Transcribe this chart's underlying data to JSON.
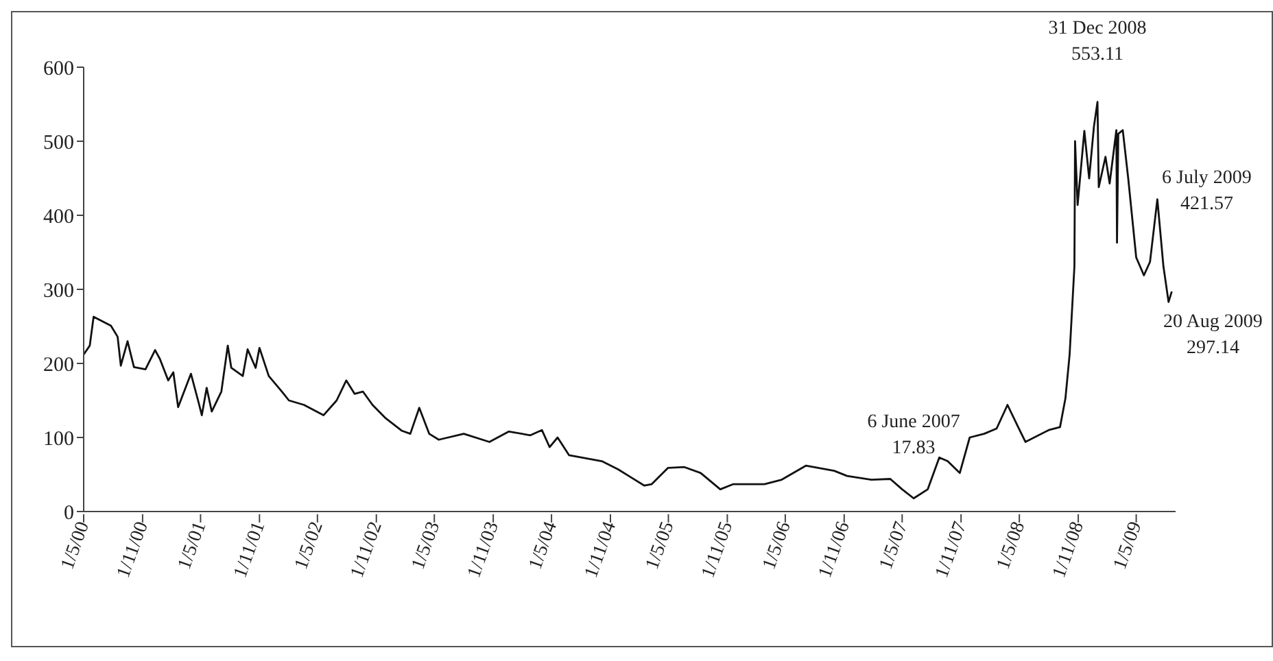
{
  "chart_data": {
    "type": "line",
    "grid": false,
    "legend": false,
    "marker": "none",
    "line_style": "solid",
    "xlim": [
      "2000-05-01",
      "2009-09-01"
    ],
    "xticks": [
      {
        "value": "2000-05-01",
        "label": "1/5/00"
      },
      {
        "value": "2000-11-01",
        "label": "1/11/00"
      },
      {
        "value": "2001-05-01",
        "label": "1/5/01"
      },
      {
        "value": "2001-11-01",
        "label": "1/11/01"
      },
      {
        "value": "2002-05-01",
        "label": "1/5/02"
      },
      {
        "value": "2002-11-01",
        "label": "1/11/02"
      },
      {
        "value": "2003-05-01",
        "label": "1/5/03"
      },
      {
        "value": "2003-11-01",
        "label": "1/11/03"
      },
      {
        "value": "2004-05-01",
        "label": "1/5/04"
      },
      {
        "value": "2004-11-01",
        "label": "1/11/04"
      },
      {
        "value": "2005-05-01",
        "label": "1/5/05"
      },
      {
        "value": "2005-11-01",
        "label": "1/11/05"
      },
      {
        "value": "2006-05-01",
        "label": "1/5/06"
      },
      {
        "value": "2006-11-01",
        "label": "1/11/06"
      },
      {
        "value": "2007-05-01",
        "label": "1/5/07"
      },
      {
        "value": "2007-11-01",
        "label": "1/11/07"
      },
      {
        "value": "2008-05-01",
        "label": "1/5/08"
      },
      {
        "value": "2008-11-01",
        "label": "1/11/08"
      },
      {
        "value": "2009-05-01",
        "label": "1/5/09"
      }
    ],
    "ylim": [
      0,
      600
    ],
    "yticks": [
      0,
      100,
      200,
      300,
      400,
      500,
      600
    ],
    "x": [
      "2000-05-01",
      "2000-05-20",
      "2000-06-01",
      "2000-07-25",
      "2000-08-15",
      "2000-08-25",
      "2000-09-15",
      "2000-10-05",
      "2000-11-10",
      "2000-12-10",
      "2000-12-25",
      "2001-01-20",
      "2001-02-05",
      "2001-02-20",
      "2001-04-01",
      "2001-04-25",
      "2001-05-05",
      "2001-05-20",
      "2001-06-05",
      "2001-07-05",
      "2001-07-25",
      "2001-08-05",
      "2001-09-10",
      "2001-09-25",
      "2001-10-20",
      "2001-11-01",
      "2001-11-30",
      "2002-01-10",
      "2002-02-01",
      "2002-03-20",
      "2002-05-20",
      "2002-06-30",
      "2002-07-30",
      "2002-08-25",
      "2002-09-20",
      "2002-10-20",
      "2002-11-30",
      "2003-01-20",
      "2003-02-15",
      "2003-03-15",
      "2003-04-15",
      "2003-05-15",
      "2003-08-01",
      "2003-10-20",
      "2003-12-20",
      "2004-02-25",
      "2004-04-01",
      "2004-04-25",
      "2004-05-20",
      "2004-06-25",
      "2004-10-05",
      "2004-11-25",
      "2005-01-05",
      "2005-02-15",
      "2005-03-10",
      "2005-04-30",
      "2005-06-20",
      "2005-08-10",
      "2005-10-10",
      "2005-11-20",
      "2006-02-25",
      "2006-04-20",
      "2006-07-05",
      "2006-10-01",
      "2006-11-10",
      "2007-01-25",
      "2007-03-25",
      "2007-05-01",
      "2007-06-06",
      "2007-07-20",
      "2007-08-25",
      "2007-09-20",
      "2007-10-28",
      "2007-11-28",
      "2008-01-12",
      "2008-02-20",
      "2008-03-25",
      "2008-04-25",
      "2008-05-20",
      "2008-08-01",
      "2008-09-05",
      "2008-09-22",
      "2008-10-05",
      "2008-10-20",
      "2008-10-22",
      "2008-10-30",
      "2008-11-20",
      "2008-12-05",
      "2008-12-20",
      "2008-12-31",
      "2009-01-04",
      "2009-01-25",
      "2009-02-07",
      "2009-02-28",
      "2009-03-02",
      "2009-03-06",
      "2009-03-20",
      "2009-04-06",
      "2009-05-01",
      "2009-05-25",
      "2009-06-13",
      "2009-07-06",
      "2009-07-25",
      "2009-08-10",
      "2009-08-20"
    ],
    "series": [
      {
        "color": "#111111",
        "values": [
          212,
          224,
          263,
          251,
          236,
          197,
          230,
          195,
          192,
          218,
          206,
          177,
          188,
          141,
          186,
          147,
          130,
          167,
          135,
          162,
          224,
          194,
          183,
          219,
          194,
          221,
          183,
          162,
          150,
          144,
          130,
          150,
          177,
          159,
          162,
          144,
          126,
          109,
          105,
          140,
          105,
          97,
          105,
          94,
          108,
          103,
          110,
          87,
          100,
          76,
          68,
          57,
          46,
          35,
          37,
          59,
          60,
          52,
          30,
          37,
          37,
          43,
          62,
          55,
          48,
          43,
          44,
          30,
          17.83,
          30,
          73,
          68,
          52,
          100,
          105,
          112,
          144,
          116,
          94,
          110,
          114,
          153,
          212,
          331,
          500,
          414,
          514,
          450,
          520,
          553.11,
          438,
          479,
          443,
          515,
          363,
          510,
          515,
          450,
          343,
          319,
          337,
          421.57,
          331,
          283,
          297.14
        ]
      }
    ],
    "annotations": [
      {
        "text": "6 June 2007\n17.83",
        "x": "2007-06-06",
        "y": 17.83
      },
      {
        "text": "31 Dec 2008\n553.11",
        "x": "2008-12-31",
        "y": 553.11
      },
      {
        "text": "6 July 2009\n421.57",
        "x": "2009-07-06",
        "y": 421.57
      },
      {
        "text": "20 Aug 2009\n297.14",
        "x": "2009-08-20",
        "y": 297.14
      }
    ]
  }
}
